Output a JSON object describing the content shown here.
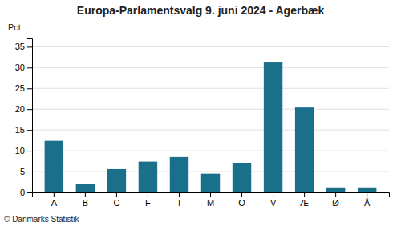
{
  "chart_data": {
    "type": "bar",
    "title": "Europa-Parlamentsvalg 9. juni 2024 - Agerbæk",
    "ylabel": "Pct.",
    "annotations": [
      "© Danmarks Statistik"
    ],
    "categories": [
      "A",
      "B",
      "C",
      "F",
      "I",
      "M",
      "O",
      "V",
      "Æ",
      "Ø",
      "Å"
    ],
    "values": [
      12.4,
      2.0,
      5.6,
      7.4,
      8.5,
      4.5,
      7.0,
      31.4,
      20.4,
      1.2,
      1.2
    ],
    "color": "#1a6f8a",
    "ylim": [
      0,
      37
    ],
    "yticks": [
      0,
      5,
      10,
      15,
      20,
      25,
      30,
      35
    ],
    "grid": true
  }
}
